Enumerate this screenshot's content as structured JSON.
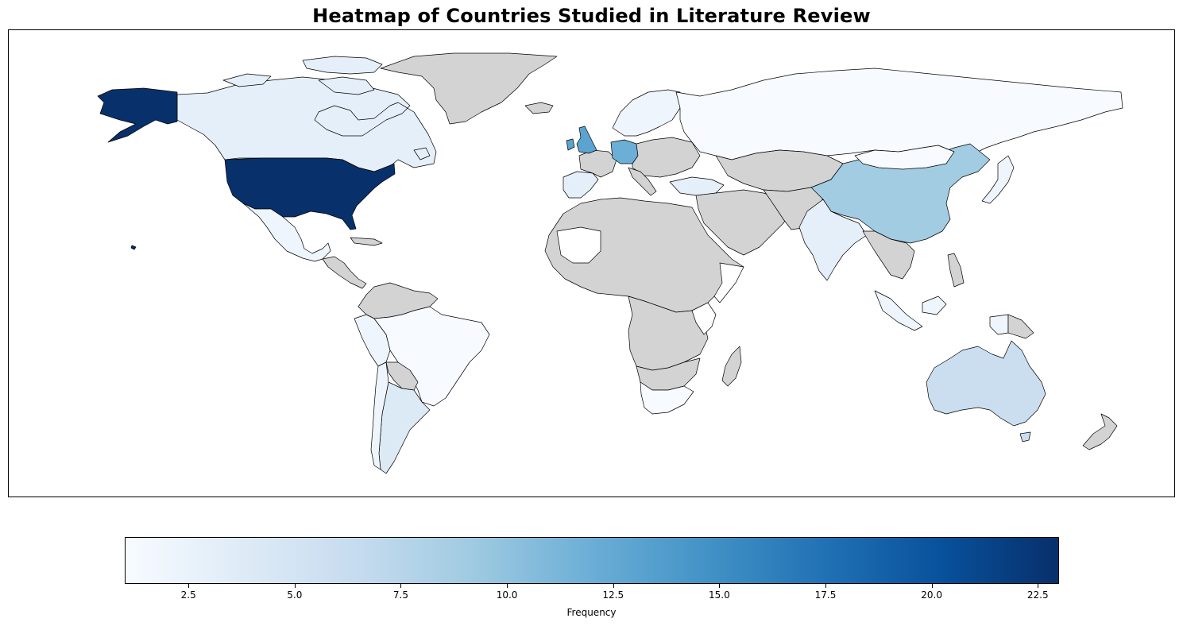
{
  "title": "Heatmap of Countries Studied in Literature Review",
  "colorbar": {
    "label": "Frequency",
    "min": 1,
    "max": 23,
    "ticks": [
      "2.5",
      "5.0",
      "7.5",
      "10.0",
      "12.5",
      "15.0",
      "17.5",
      "20.0",
      "22.5"
    ],
    "tick_values": [
      2.5,
      5.0,
      7.5,
      10.0,
      12.5,
      15.0,
      17.5,
      20.0,
      22.5
    ],
    "colormap": "Blues",
    "stops": [
      "#f7fbff",
      "#deebf7",
      "#c6dbef",
      "#9ecae1",
      "#6baed6",
      "#4292c6",
      "#2171b5",
      "#08519c",
      "#08306b"
    ]
  },
  "no_data_color": "#d3d3d3",
  "countries": {
    "United States": 23,
    "Alaska": 23,
    "United Kingdom": 13,
    "Germany": 12,
    "China": 9,
    "Australia": 6,
    "India": 3,
    "Canada": 3,
    "Spain": 3,
    "Argentina": 4,
    "Turkey": 3,
    "Mexico": 2,
    "Brazil": 1,
    "Russia": 1,
    "Scandinavia": 2,
    "Indonesia": 2,
    "Peru": 2,
    "Chile": 2,
    "Papua New Guinea": 2,
    "Mongolia": 1,
    "Japan": 2,
    "South Africa": 1
  }
}
